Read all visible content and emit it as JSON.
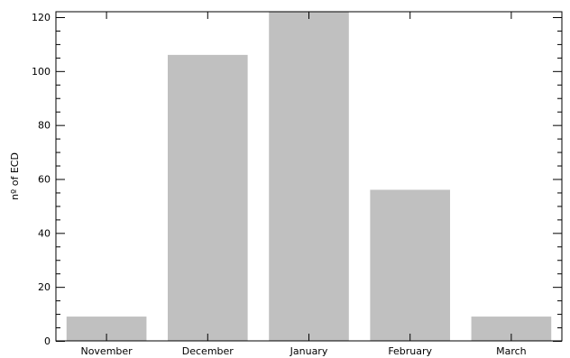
{
  "chart_data": {
    "type": "bar",
    "categories": [
      "November",
      "December",
      "January",
      "February",
      "March"
    ],
    "values": [
      9,
      106,
      122,
      56,
      9
    ],
    "xlabel": "",
    "ylabel": "nº of ECD",
    "ylim": [
      0,
      122
    ],
    "yticks": [
      0,
      20,
      40,
      60,
      80,
      100,
      120
    ],
    "grid": false,
    "bar_color": "#c0c0c0",
    "axis_color": "#000000"
  }
}
